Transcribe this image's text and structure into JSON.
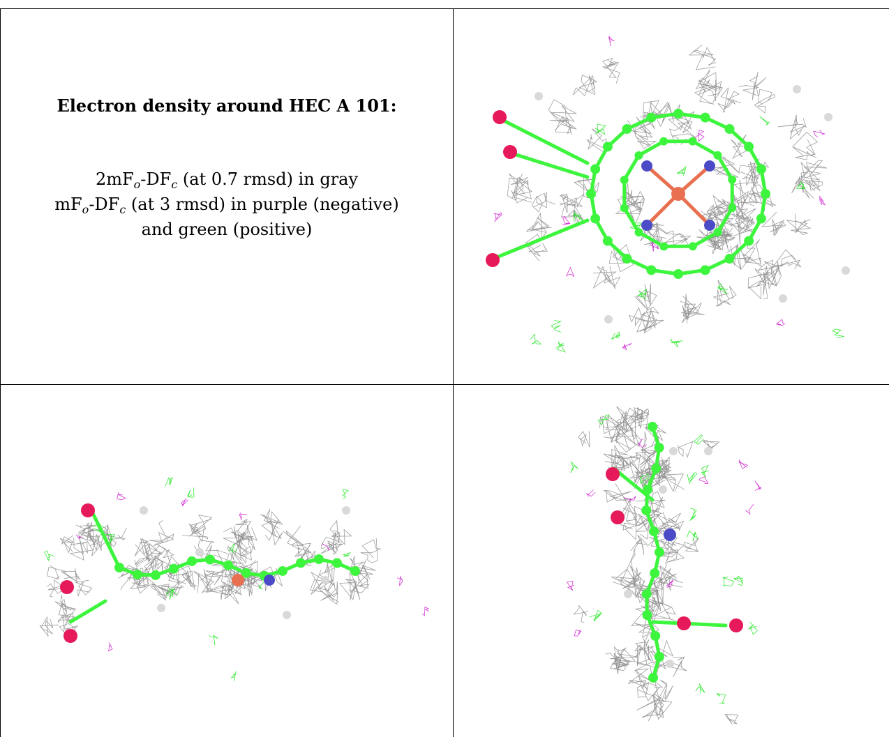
{
  "caption": {
    "title": "Electron density around HEC A 101:",
    "lines": [
      {
        "pre": "2mF",
        "sub1": "o",
        "mid": "-DF",
        "sub2": "c",
        "post": " (at 0.7 rmsd) in gray"
      },
      {
        "pre": "mF",
        "sub1": "o",
        "mid": "-DF",
        "sub2": "c",
        "post": " (at 3 rmsd) in purple (negative)"
      },
      {
        "text": "and green (positive)"
      }
    ]
  },
  "colors": {
    "mesh_2fofc": "#8c8c8c",
    "mesh_positive": "#19e619",
    "mesh_negative": "#cc19cc",
    "carbon": "#3ef53e",
    "nitrogen": "#4b4bc8",
    "oxygen": "#e6195a",
    "iron": "#e87050",
    "hydrogen": "#d9d9d9"
  },
  "panels": [
    {
      "view": "top",
      "label": "heme-face-view"
    },
    {
      "view": "side",
      "label": "heme-edge-view"
    },
    {
      "view": "end",
      "label": "heme-end-view"
    }
  ]
}
